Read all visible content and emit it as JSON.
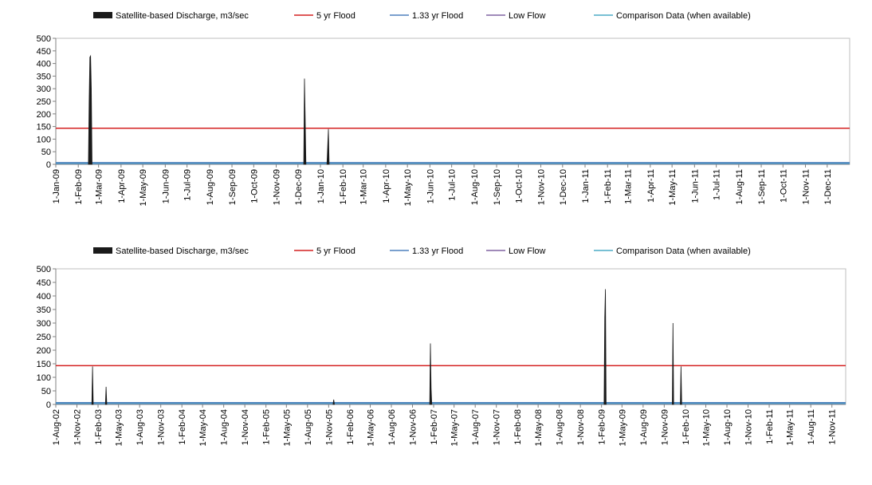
{
  "legend": {
    "items": [
      {
        "key": "discharge",
        "label": "Satellite-based Discharge, m3/sec",
        "color": "#1a1a1a",
        "kind": "bar"
      },
      {
        "key": "flood5",
        "label": "5 yr Flood",
        "color": "#d42020",
        "kind": "line"
      },
      {
        "key": "flood133",
        "label": "1.33 yr Flood",
        "color": "#4f81bd",
        "kind": "line"
      },
      {
        "key": "lowflow",
        "label": "Low Flow",
        "color": "#8064a2",
        "kind": "line"
      },
      {
        "key": "comparison",
        "label": "Comparison Data (when available)",
        "color": "#4bacc6",
        "kind": "line"
      }
    ]
  },
  "chart_data": [
    {
      "type": "area",
      "y_ticks": [
        "0",
        "50",
        "100",
        "150",
        "200",
        "250",
        "300",
        "350",
        "400",
        "450",
        "500"
      ],
      "ylim": [
        0,
        500
      ],
      "x_ticks": [
        "1-Jan-09",
        "1-Feb-09",
        "1-Mar-09",
        "1-Apr-09",
        "1-May-09",
        "1-Jun-09",
        "1-Jul-09",
        "1-Aug-09",
        "1-Sep-09",
        "1-Oct-09",
        "1-Nov-09",
        "1-Dec-09",
        "1-Jan-10",
        "1-Feb-10",
        "1-Mar-10",
        "1-Apr-10",
        "1-May-10",
        "1-Jun-10",
        "1-Jul-10",
        "1-Aug-10",
        "1-Sep-10",
        "1-Oct-10",
        "1-Nov-10",
        "1-Dec-10",
        "1-Jan-11",
        "1-Feb-11",
        "1-Mar-11",
        "1-Apr-11",
        "1-May-11",
        "1-Jun-11",
        "1-Jul-11",
        "1-Aug-11",
        "1-Sep-11",
        "1-Oct-11",
        "1-Nov-11",
        "1-Dec-11"
      ],
      "x_range": [
        "2009-01-01",
        "2012-01-01"
      ],
      "flood5": 143,
      "flood133": 6,
      "lowflow": 2,
      "discharge": [
        {
          "x": "2009-02-15",
          "y": 0
        },
        {
          "x": "2009-02-16",
          "y": 250
        },
        {
          "x": "2009-02-17",
          "y": 425
        },
        {
          "x": "2009-02-18",
          "y": 430
        },
        {
          "x": "2009-02-19",
          "y": 300
        },
        {
          "x": "2009-02-20",
          "y": 0
        },
        {
          "x": "2009-12-09",
          "y": 0
        },
        {
          "x": "2009-12-10",
          "y": 340
        },
        {
          "x": "2009-12-11",
          "y": 180
        },
        {
          "x": "2009-12-12",
          "y": 0
        },
        {
          "x": "2010-01-10",
          "y": 0
        },
        {
          "x": "2010-01-11",
          "y": 70
        },
        {
          "x": "2010-01-12",
          "y": 140
        },
        {
          "x": "2010-01-13",
          "y": 0
        }
      ]
    },
    {
      "type": "area",
      "y_ticks": [
        "0",
        "50",
        "100",
        "150",
        "200",
        "250",
        "300",
        "350",
        "400",
        "450",
        "500"
      ],
      "ylim": [
        0,
        500
      ],
      "x_ticks": [
        "1-Aug-02",
        "1-Nov-02",
        "1-Feb-03",
        "1-May-03",
        "1-Aug-03",
        "1-Nov-03",
        "1-Feb-04",
        "1-May-04",
        "1-Aug-04",
        "1-Nov-04",
        "1-Feb-05",
        "1-May-05",
        "1-Aug-05",
        "1-Nov-05",
        "1-Feb-06",
        "1-May-06",
        "1-Aug-06",
        "1-Nov-06",
        "1-Feb-07",
        "1-May-07",
        "1-Aug-07",
        "1-Nov-07",
        "1-Feb-08",
        "1-May-08",
        "1-Aug-08",
        "1-Nov-08",
        "1-Feb-09",
        "1-May-09",
        "1-Aug-09",
        "1-Nov-09",
        "1-Feb-10",
        "1-May-10",
        "1-Aug-10",
        "1-Nov-10",
        "1-Feb-11",
        "1-May-11",
        "1-Aug-11",
        "1-Nov-11"
      ],
      "x_range": [
        "2002-08-01",
        "2011-12-31"
      ],
      "flood5": 143,
      "flood133": 6,
      "lowflow": 2,
      "discharge": [
        {
          "x": "2003-01-05",
          "y": 0
        },
        {
          "x": "2003-01-08",
          "y": 140
        },
        {
          "x": "2003-01-11",
          "y": 0
        },
        {
          "x": "2003-03-05",
          "y": 0
        },
        {
          "x": "2003-03-08",
          "y": 65
        },
        {
          "x": "2003-03-11",
          "y": 0
        },
        {
          "x": "2005-11-20",
          "y": 0
        },
        {
          "x": "2005-11-23",
          "y": 18
        },
        {
          "x": "2005-11-26",
          "y": 0
        },
        {
          "x": "2007-01-15",
          "y": 0
        },
        {
          "x": "2007-01-18",
          "y": 225
        },
        {
          "x": "2007-01-21",
          "y": 60
        },
        {
          "x": "2007-01-24",
          "y": 0
        },
        {
          "x": "2009-02-12",
          "y": 0
        },
        {
          "x": "2009-02-15",
          "y": 320
        },
        {
          "x": "2009-02-18",
          "y": 425
        },
        {
          "x": "2009-02-21",
          "y": 0
        },
        {
          "x": "2009-12-06",
          "y": 0
        },
        {
          "x": "2009-12-09",
          "y": 300
        },
        {
          "x": "2009-12-12",
          "y": 0
        },
        {
          "x": "2010-01-10",
          "y": 0
        },
        {
          "x": "2010-01-13",
          "y": 140
        },
        {
          "x": "2010-01-16",
          "y": 0
        }
      ]
    }
  ]
}
